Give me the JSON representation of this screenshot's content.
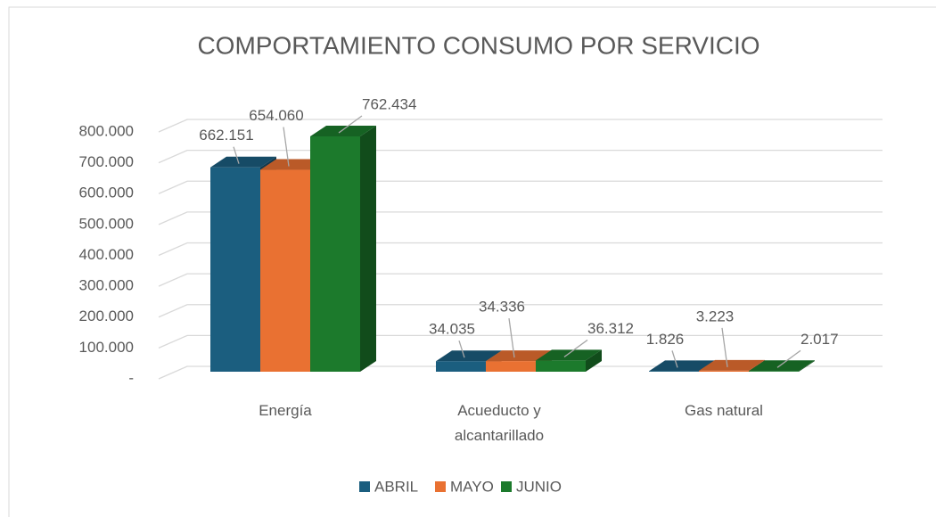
{
  "chart_data": {
    "type": "bar3d",
    "title": "COMPORTAMIENTO CONSUMO POR SERVICIO",
    "categories": [
      "Energía",
      "Acueducto y alcantarillado",
      "Gas natural"
    ],
    "series": [
      {
        "name": "ABRIL",
        "color": "#1b5e7f",
        "values": [
          662151,
          34035,
          1826
        ],
        "value_labels": [
          "662.151",
          "34.035",
          "1.826"
        ]
      },
      {
        "name": "MAYO",
        "color": "#e97132",
        "values": [
          654060,
          34336,
          3223
        ],
        "value_labels": [
          "654.060",
          "34.336",
          "3.223"
        ]
      },
      {
        "name": "JUNIO",
        "color": "#1c7a2c",
        "values": [
          762434,
          36312,
          2017
        ],
        "value_labels": [
          "762.434",
          "36.312",
          "2.017"
        ]
      }
    ],
    "ylim": [
      0,
      800000
    ],
    "yticks": [
      {
        "value": 0,
        "label": "-"
      },
      {
        "value": 100000,
        "label": "100.000"
      },
      {
        "value": 200000,
        "label": "200.000"
      },
      {
        "value": 300000,
        "label": "300.000"
      },
      {
        "value": 400000,
        "label": "400.000"
      },
      {
        "value": 500000,
        "label": "500.000"
      },
      {
        "value": 600000,
        "label": "600.000"
      },
      {
        "value": 700000,
        "label": "700.000"
      },
      {
        "value": 800000,
        "label": "800.000"
      }
    ],
    "grid": true,
    "legend": "bottom"
  }
}
